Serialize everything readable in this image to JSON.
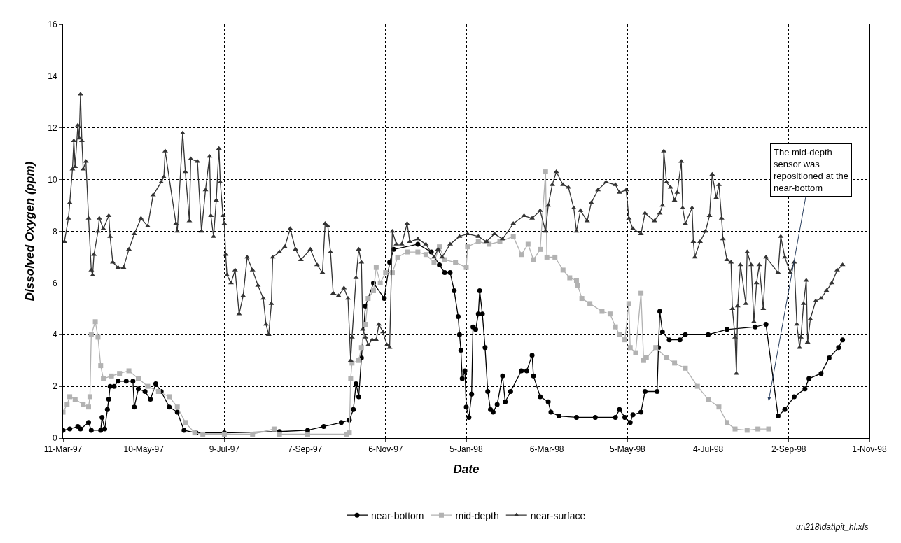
{
  "chart_data": {
    "type": "line",
    "xlabel": "Date",
    "ylabel": "Dissolved Oxygen (ppm)",
    "xlim": [
      "1997-03-11",
      "1998-11-01"
    ],
    "xticks": [
      {
        "value": "1997-03-11",
        "label": "11-Mar-97"
      },
      {
        "value": "1997-05-10",
        "label": "10-May-97"
      },
      {
        "value": "1997-07-09",
        "label": "9-Jul-97"
      },
      {
        "value": "1997-09-07",
        "label": "7-Sep-97"
      },
      {
        "value": "1997-11-06",
        "label": "6-Nov-97"
      },
      {
        "value": "1998-01-05",
        "label": "5-Jan-98"
      },
      {
        "value": "1998-03-06",
        "label": "6-Mar-98"
      },
      {
        "value": "1998-05-05",
        "label": "5-May-98"
      },
      {
        "value": "1998-07-04",
        "label": "4-Jul-98"
      },
      {
        "value": "1998-09-02",
        "label": "2-Sep-98"
      },
      {
        "value": "1998-11-01",
        "label": "1-Nov-98"
      }
    ],
    "ylim": [
      0,
      16
    ],
    "yticks": [
      0,
      2,
      4,
      6,
      8,
      10,
      12,
      14,
      16
    ],
    "grid": true,
    "legend": "bottom",
    "line_style": "solid",
    "series": [
      {
        "name": "near-bottom",
        "color": "#000000",
        "marker": "circle",
        "x": [
          "1997-03-11",
          "1997-03-16",
          "1997-03-22",
          "1997-03-24",
          "1997-03-30",
          "1997-04-01",
          "1997-04-08",
          "1997-04-09",
          "1997-04-11",
          "1997-04-13",
          "1997-04-14",
          "1997-04-15",
          "1997-04-18",
          "1997-04-21",
          "1997-04-27",
          "1997-05-02",
          "1997-05-03",
          "1997-05-06",
          "1997-05-11",
          "1997-05-15",
          "1997-05-19",
          "1997-05-23",
          "1997-05-29",
          "1997-06-04",
          "1997-06-09",
          "1997-06-18",
          "1997-07-09",
          "1997-08-19",
          "1997-09-09",
          "1997-09-21",
          "1997-10-04",
          "1997-10-10",
          "1997-10-13",
          "1997-10-15",
          "1997-10-17",
          "1997-10-19",
          "1997-10-22",
          "1997-10-28",
          "1997-11-05",
          "1997-11-09",
          "1997-11-12",
          "1997-11-30",
          "1997-12-10",
          "1997-12-16",
          "1997-12-20",
          "1997-12-24",
          "1997-12-27",
          "1997-12-30",
          "1997-12-31",
          "1998-01-01",
          "1998-01-02",
          "1998-01-04",
          "1998-01-05",
          "1998-01-07",
          "1998-01-09",
          "1998-01-10",
          "1998-01-12",
          "1998-01-14",
          "1998-01-15",
          "1998-01-17",
          "1998-01-19",
          "1998-01-21",
          "1998-01-23",
          "1998-01-25",
          "1998-01-28",
          "1998-02-01",
          "1998-02-03",
          "1998-02-07",
          "1998-02-15",
          "1998-02-19",
          "1998-02-23",
          "1998-02-24",
          "1998-03-01",
          "1998-03-07",
          "1998-03-09",
          "1998-03-15",
          "1998-03-28",
          "1998-04-11",
          "1998-04-26",
          "1998-04-29",
          "1998-05-03",
          "1998-05-07",
          "1998-05-09",
          "1998-05-15",
          "1998-05-18",
          "1998-05-27",
          "1998-05-28",
          "1998-05-29",
          "1998-05-31",
          "1998-06-05",
          "1998-06-13",
          "1998-06-17",
          "1998-07-04",
          "1998-07-18",
          "1998-08-08",
          "1998-08-16",
          "1998-08-25",
          "1998-08-30",
          "1998-09-06",
          "1998-09-14",
          "1998-09-17",
          "1998-09-26",
          "1998-10-02",
          "1998-10-09",
          "1998-10-12"
        ],
        "values": [
          0.3,
          0.35,
          0.45,
          0.35,
          0.6,
          0.3,
          0.3,
          0.8,
          0.35,
          1.1,
          1.5,
          2.0,
          2.0,
          2.2,
          2.2,
          2.2,
          1.2,
          1.9,
          1.8,
          1.5,
          2.1,
          1.8,
          1.2,
          1.0,
          0.3,
          0.2,
          0.2,
          0.25,
          0.3,
          0.45,
          0.6,
          0.7,
          1.1,
          2.1,
          1.6,
          3.1,
          5.1,
          6.0,
          5.4,
          6.8,
          7.3,
          7.5,
          7.2,
          6.7,
          6.4,
          6.4,
          5.7,
          4.7,
          4.0,
          3.4,
          2.3,
          2.6,
          1.2,
          0.8,
          1.7,
          4.3,
          4.2,
          4.8,
          5.7,
          4.8,
          3.5,
          1.8,
          1.1,
          1.0,
          1.3,
          2.4,
          1.4,
          1.8,
          2.6,
          2.6,
          3.2,
          2.4,
          1.6,
          1.4,
          1.0,
          0.85,
          0.8,
          0.8,
          0.8,
          1.1,
          0.8,
          0.6,
          0.9,
          1.0,
          1.8,
          1.8,
          3.5,
          4.9,
          4.1,
          3.8,
          3.8,
          4.0,
          4.0,
          4.2,
          4.3,
          4.4,
          0.85,
          1.1,
          1.6,
          1.9,
          2.3,
          2.5,
          3.1,
          3.5,
          3.8
        ]
      },
      {
        "name": "mid-depth",
        "color": "#b2b2b2",
        "marker": "square",
        "x": [
          "1997-03-11",
          "1997-03-14",
          "1997-03-16",
          "1997-03-20",
          "1997-03-26",
          "1997-03-30",
          "1997-03-31",
          "1997-04-01",
          "1997-04-04",
          "1997-04-06",
          "1997-04-08",
          "1997-04-10",
          "1997-04-16",
          "1997-04-22",
          "1997-04-29",
          "1997-05-06",
          "1997-05-13",
          "1997-05-21",
          "1997-05-29",
          "1997-06-04",
          "1997-06-10",
          "1997-06-17",
          "1997-06-23",
          "1997-07-09",
          "1997-07-30",
          "1997-08-15",
          "1997-08-19",
          "1997-09-09",
          "1997-10-08",
          "1997-10-10",
          "1997-10-11",
          "1997-10-12",
          "1997-10-17",
          "1997-10-19",
          "1997-10-22",
          "1997-10-24",
          "1997-10-28",
          "1997-10-30",
          "1997-11-02",
          "1997-11-06",
          "1997-11-11",
          "1997-11-15",
          "1997-11-22",
          "1997-11-30",
          "1997-12-06",
          "1997-12-12",
          "1997-12-16",
          "1997-12-20",
          "1997-12-28",
          "1998-01-05",
          "1998-01-06",
          "1998-01-14",
          "1998-01-22",
          "1998-01-30",
          "1998-02-09",
          "1998-02-15",
          "1998-02-20",
          "1998-02-24",
          "1998-03-01",
          "1998-03-05",
          "1998-03-06",
          "1998-03-12",
          "1998-03-18",
          "1998-03-23",
          "1998-03-28",
          "1998-03-29",
          "1998-04-01",
          "1998-04-07",
          "1998-04-16",
          "1998-04-22",
          "1998-04-26",
          "1998-04-29",
          "1998-05-03",
          "1998-05-06",
          "1998-05-07",
          "1998-05-11",
          "1998-05-15",
          "1998-05-17",
          "1998-05-19",
          "1998-05-26",
          "1998-06-03",
          "1998-06-09",
          "1998-06-17",
          "1998-06-26",
          "1998-07-04",
          "1998-07-12",
          "1998-07-18",
          "1998-07-24",
          "1998-08-02",
          "1998-08-10",
          "1998-08-18"
        ],
        "values": [
          1.0,
          1.3,
          1.6,
          1.5,
          1.3,
          1.2,
          1.6,
          4.0,
          4.5,
          3.9,
          2.8,
          2.3,
          2.4,
          2.5,
          2.6,
          2.3,
          2.0,
          1.8,
          1.6,
          1.2,
          0.6,
          0.2,
          0.15,
          0.15,
          0.15,
          0.35,
          0.15,
          0.15,
          0.15,
          0.2,
          2.3,
          2.9,
          3.0,
          3.5,
          4.4,
          5.4,
          5.7,
          6.6,
          6.0,
          6.4,
          6.4,
          7.0,
          7.2,
          7.2,
          7.1,
          6.8,
          7.4,
          6.9,
          6.8,
          6.6,
          7.4,
          7.6,
          7.5,
          7.6,
          7.8,
          7.1,
          7.5,
          6.9,
          7.3,
          10.3,
          7.0,
          7.0,
          6.5,
          6.2,
          6.1,
          5.9,
          5.4,
          5.2,
          4.9,
          4.8,
          4.3,
          4.0,
          3.8,
          5.2,
          3.5,
          3.3,
          5.6,
          3.0,
          3.1,
          3.5,
          3.1,
          2.9,
          2.7,
          2.0,
          1.5,
          1.2,
          0.6,
          0.35,
          0.3,
          0.35,
          0.35
        ]
      },
      {
        "name": "near-surface",
        "color": "#333333",
        "marker": "triangle",
        "x": [
          "1997-03-12",
          "1997-03-15",
          "1997-03-16",
          "1997-03-18",
          "1997-03-19",
          "1997-03-20",
          "1997-03-22",
          "1997-03-23",
          "1997-03-24",
          "1997-03-25",
          "1997-03-26",
          "1997-03-28",
          "1997-03-30",
          "1997-04-01",
          "1997-04-02",
          "1997-04-03",
          "1997-04-06",
          "1997-04-07",
          "1997-04-10",
          "1997-04-14",
          "1997-04-15",
          "1997-04-17",
          "1997-04-21",
          "1997-04-25",
          "1997-04-29",
          "1997-05-03",
          "1997-05-08",
          "1997-05-13",
          "1997-05-17",
          "1997-05-23",
          "1997-05-25",
          "1997-05-26",
          "1997-06-03",
          "1997-06-04",
          "1997-06-08",
          "1997-06-10",
          "1997-06-13",
          "1997-06-14",
          "1997-06-19",
          "1997-06-22",
          "1997-06-25",
          "1997-06-28",
          "1997-06-29",
          "1997-07-01",
          "1997-07-03",
          "1997-07-05",
          "1997-07-06",
          "1997-07-08",
          "1997-07-09",
          "1997-07-10",
          "1997-07-11",
          "1997-07-14",
          "1997-07-17",
          "1997-07-20",
          "1997-07-23",
          "1997-07-26",
          "1997-07-30",
          "1997-08-03",
          "1997-08-07",
          "1997-08-09",
          "1997-08-11",
          "1997-08-13",
          "1997-08-14",
          "1997-08-19",
          "1997-08-23",
          "1997-08-27",
          "1997-08-31",
          "1997-09-04",
          "1997-09-11",
          "1997-09-16",
          "1997-09-20",
          "1997-09-22",
          "1997-09-24",
          "1997-09-26",
          "1997-09-28",
          "1997-10-02",
          "1997-10-06",
          "1997-10-09",
          "1997-10-11",
          "1997-10-12",
          "1997-10-15",
          "1997-10-17",
          "1997-10-19",
          "1997-10-20",
          "1997-10-22",
          "1997-10-24",
          "1997-10-27",
          "1997-10-30",
          "1997-11-01",
          "1997-11-04",
          "1997-11-07",
          "1997-11-09",
          "1997-11-11",
          "1997-11-14",
          "1997-11-18",
          "1997-11-22",
          "1997-11-24",
          "1997-11-30",
          "1997-12-06",
          "1997-12-12",
          "1997-12-15",
          "1997-12-18",
          "1997-12-24",
          "1997-12-31",
          "1998-01-06",
          "1998-01-14",
          "1998-01-20",
          "1998-01-26",
          "1998-02-01",
          "1998-02-09",
          "1998-02-17",
          "1998-02-23",
          "1998-03-01",
          "1998-03-05",
          "1998-03-07",
          "1998-03-10",
          "1998-03-13",
          "1998-03-18",
          "1998-03-22",
          "1998-03-26",
          "1998-03-28",
          "1998-03-31",
          "1998-04-05",
          "1998-04-08",
          "1998-04-13",
          "1998-04-19",
          "1998-04-26",
          "1998-04-29",
          "1998-05-04",
          "1998-05-06",
          "1998-05-09",
          "1998-05-15",
          "1998-05-18",
          "1998-05-25",
          "1998-05-29",
          "1998-05-31",
          "1998-06-01",
          "1998-06-03",
          "1998-06-06",
          "1998-06-09",
          "1998-06-11",
          "1998-06-14",
          "1998-06-15",
          "1998-06-17",
          "1998-06-22",
          "1998-06-23",
          "1998-06-24",
          "1998-06-28",
          "1998-07-02",
          "1998-07-05",
          "1998-07-07",
          "1998-07-10",
          "1998-07-12",
          "1998-07-14",
          "1998-07-15",
          "1998-07-18",
          "1998-07-21",
          "1998-07-22",
          "1998-07-24",
          "1998-07-25",
          "1998-07-26",
          "1998-07-28",
          "1998-08-01",
          "1998-08-02",
          "1998-08-05",
          "1998-08-07",
          "1998-08-09",
          "1998-08-11",
          "1998-08-14",
          "1998-08-16",
          "1998-08-25",
          "1998-08-27",
          "1998-08-30",
          "1998-09-03",
          "1998-09-06",
          "1998-09-08",
          "1998-09-10",
          "1998-09-11",
          "1998-09-13",
          "1998-09-15",
          "1998-09-16",
          "1998-09-18",
          "1998-09-22",
          "1998-09-26",
          "1998-09-30",
          "1998-10-04",
          "1998-10-08",
          "1998-10-12"
        ],
        "values": [
          7.6,
          8.5,
          9.1,
          10.4,
          11.5,
          10.5,
          12.1,
          11.6,
          13.3,
          11.5,
          10.4,
          10.7,
          8.5,
          6.5,
          6.3,
          7.1,
          8.0,
          8.5,
          8.1,
          8.6,
          7.8,
          6.8,
          6.6,
          6.6,
          7.3,
          7.9,
          8.5,
          8.2,
          9.4,
          9.9,
          10.1,
          11.1,
          8.3,
          8.0,
          11.8,
          10.3,
          8.4,
          10.8,
          10.7,
          8.0,
          9.6,
          10.9,
          8.6,
          7.8,
          9.2,
          11.2,
          9.9,
          8.6,
          8.3,
          7.1,
          6.3,
          6.0,
          6.5,
          4.8,
          5.5,
          7.0,
          6.5,
          5.9,
          5.4,
          4.4,
          4.0,
          5.2,
          7.0,
          7.2,
          7.4,
          8.1,
          7.3,
          6.9,
          7.3,
          6.7,
          6.4,
          8.3,
          8.2,
          7.2,
          5.6,
          5.5,
          5.8,
          5.4,
          3.0,
          3.9,
          6.2,
          7.3,
          6.8,
          4.2,
          3.9,
          3.6,
          3.8,
          3.8,
          4.4,
          4.1,
          3.6,
          3.5,
          8.0,
          7.5,
          7.5,
          8.3,
          7.6,
          7.7,
          7.5,
          7.0,
          7.3,
          7.0,
          7.5,
          7.8,
          7.9,
          7.8,
          7.6,
          7.9,
          7.7,
          8.3,
          8.6,
          8.5,
          8.8,
          8.0,
          9.0,
          9.8,
          10.3,
          9.8,
          9.7,
          8.9,
          8.0,
          8.8,
          8.4,
          9.1,
          9.6,
          9.9,
          9.8,
          9.5,
          9.6,
          8.5,
          8.1,
          7.9,
          8.7,
          8.4,
          8.7,
          9.0,
          11.1,
          9.9,
          9.7,
          9.2,
          9.5,
          10.7,
          8.9,
          8.3,
          8.9,
          7.6,
          7.0,
          7.6,
          8.0,
          8.6,
          10.2,
          9.3,
          9.8,
          8.5,
          7.7,
          6.9,
          6.8,
          5.0,
          3.9,
          2.5,
          5.1,
          6.7,
          5.2,
          7.2,
          6.7,
          4.5,
          6.0,
          6.7,
          5.0,
          7.0,
          6.4,
          7.8,
          7.0,
          6.4,
          6.8,
          4.4,
          3.5,
          3.9,
          5.2,
          6.1,
          3.7,
          4.6,
          5.3,
          5.4,
          5.7,
          6.0,
          6.5,
          6.7
        ]
      }
    ],
    "annotations": [
      "The mid-depth\nsensor was\nrepositioned at the\nnear-bottom",
      "u:\\218\\dat\\pit_hl.xls"
    ]
  }
}
